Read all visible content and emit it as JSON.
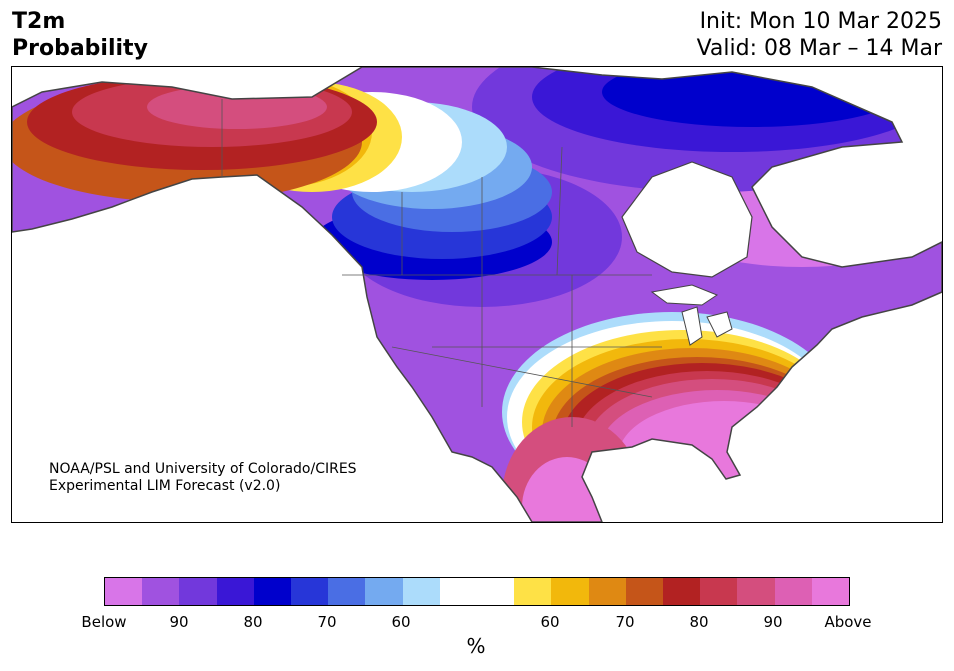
{
  "header": {
    "title_line1": "T2m",
    "title_line2": "Probability",
    "init": "Init: Mon 10 Mar 2025",
    "valid": "Valid: 08 Mar – 14 Mar"
  },
  "credit": {
    "line1": "NOAA/PSL and University of Colorado/CIRES",
    "line2": "Experimental LIM Forecast (v2.0)"
  },
  "colorbar": {
    "colors": [
      "#d875e8",
      "#a052e0",
      "#7238dc",
      "#3a17d6",
      "#0000cc",
      "#2736d8",
      "#4a6ee4",
      "#74aaf0",
      "#acdcfb",
      "#ffffff",
      "#ffffff",
      "#fee146",
      "#f2b80c",
      "#df8913",
      "#c55519",
      "#b22222",
      "#c8384f",
      "#d44e7e",
      "#dd60b4",
      "#e878dc"
    ],
    "ticks": [
      "Below",
      "90",
      "80",
      "70",
      "60",
      "60",
      "70",
      "80",
      "90",
      "Above"
    ],
    "unit": "%"
  },
  "map": {
    "colors": {
      "land_outline": "#444444",
      "water": "#ffffff"
    }
  }
}
